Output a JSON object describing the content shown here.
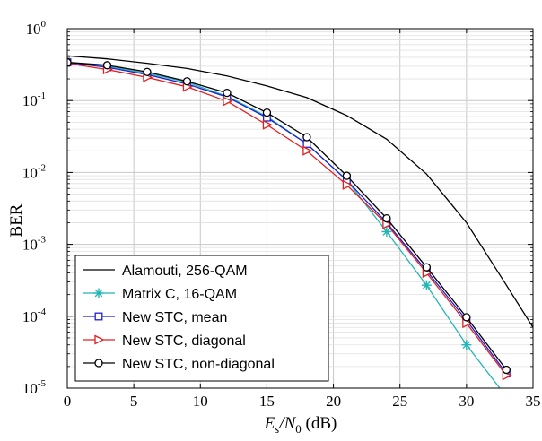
{
  "chart_data": {
    "type": "line",
    "xlabel": {
      "main": "E",
      "sub1": "s",
      "slash": "/N",
      "sub2": "0",
      "unit": " (dB)"
    },
    "ylabel": "BER",
    "xlim": [
      0,
      35
    ],
    "ylim": [
      1e-05,
      1
    ],
    "yscale": "log",
    "grid": true,
    "legend_position": "bottom-left",
    "x_ticks": [
      "0",
      "5",
      "10",
      "15",
      "20",
      "25",
      "30",
      "35"
    ],
    "y_ticks": [
      {
        "base": "10",
        "exp": "0"
      },
      {
        "base": "10",
        "exp": "-1"
      },
      {
        "base": "10",
        "exp": "-2"
      },
      {
        "base": "10",
        "exp": "-3"
      },
      {
        "base": "10",
        "exp": "-4"
      },
      {
        "base": "10",
        "exp": "-5"
      }
    ],
    "series": [
      {
        "name": "Alamouti, 256-QAM",
        "color": "#000000",
        "marker": "none",
        "x": [
          0,
          3,
          6,
          9,
          12,
          15,
          18,
          21,
          24,
          27,
          30,
          33,
          35
        ],
        "y": [
          0.42,
          0.38,
          0.33,
          0.28,
          0.22,
          0.16,
          0.11,
          0.062,
          0.029,
          0.0095,
          0.002,
          0.00027,
          7e-05
        ]
      },
      {
        "name": "Matrix C, 16-QAM",
        "color": "#22b5b5",
        "marker": "star",
        "x": [
          0,
          3,
          6,
          9,
          12,
          15,
          18,
          21,
          24,
          27,
          30,
          32.5
        ],
        "y": [
          0.34,
          0.3,
          0.24,
          0.18,
          0.115,
          0.06,
          0.025,
          0.0078,
          0.0015,
          0.00027,
          4e-05,
          1e-05
        ],
        "marker_x": [
          24,
          27,
          30
        ]
      },
      {
        "name": "New STC, mean",
        "color": "#1f1fd0",
        "marker": "square",
        "x": [
          0,
          3,
          6,
          9,
          12,
          15,
          18,
          21,
          24,
          27,
          30,
          33
        ],
        "y": [
          0.34,
          0.29,
          0.23,
          0.17,
          0.112,
          0.058,
          0.025,
          0.0078,
          0.002,
          0.00043,
          8.8e-05,
          1.6e-05
        ]
      },
      {
        "name": "New STC, diagonal",
        "color": "#e02020",
        "marker": "triangle-right",
        "x": [
          0,
          3,
          6,
          9,
          12,
          15,
          18,
          21,
          24,
          27,
          30,
          33
        ],
        "y": [
          0.33,
          0.27,
          0.21,
          0.155,
          0.098,
          0.046,
          0.02,
          0.0067,
          0.0019,
          0.0004,
          8e-05,
          1.5e-05
        ]
      },
      {
        "name": "New STC, non-diagonal",
        "color": "#000000",
        "marker": "circle",
        "x": [
          0,
          3,
          6,
          9,
          12,
          15,
          18,
          21,
          24,
          27,
          30,
          33
        ],
        "y": [
          0.34,
          0.31,
          0.25,
          0.185,
          0.128,
          0.068,
          0.031,
          0.009,
          0.0023,
          0.00048,
          9.7e-05,
          1.8e-05
        ]
      }
    ]
  }
}
